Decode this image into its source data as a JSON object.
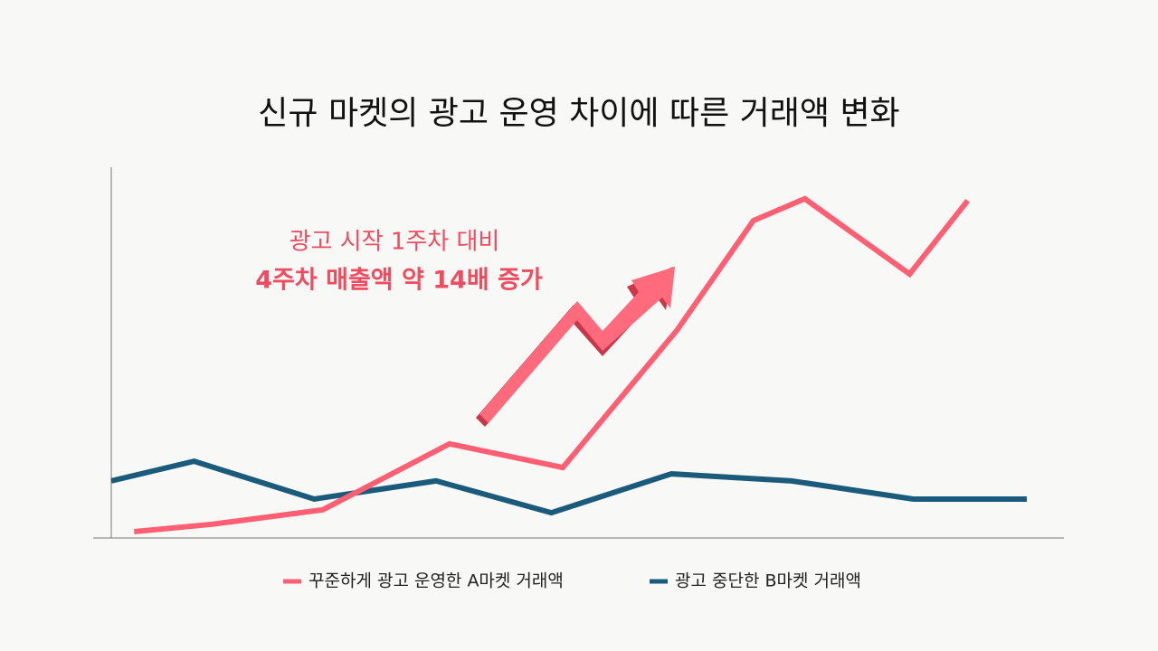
{
  "chart_data": {
    "type": "line",
    "title": "신규 마켓의 광고 운영 차이에 따른 거래액 변화",
    "annotation": [
      "광고 시작 1주차 대비",
      "4주차 매출액 약 14배 증가"
    ],
    "xlim": [
      0,
      100
    ],
    "ylim": [
      0,
      100
    ],
    "grid": false,
    "legend": "bottom",
    "series": [
      {
        "name": "꾸준하게 광고 운영한 A마켓 거래액",
        "color": "#ff5f73",
        "x": [
          2.4,
          10.6,
          22.2,
          35.5,
          47.4,
          59.4,
          67.4,
          72.8,
          83.8,
          89.9
        ],
        "values": [
          1.7,
          3.7,
          7.6,
          25.4,
          19.0,
          56.1,
          85.6,
          91.5,
          71.2,
          91.0
        ]
      },
      {
        "name": "광고 중단한 B마켓 거래액",
        "color": "#1a5a7a",
        "x": [
          0,
          8.7,
          21.3,
          34.1,
          46.2,
          58.8,
          71.4,
          84.2,
          96.1
        ],
        "values": [
          15.4,
          20.7,
          10.5,
          15.4,
          6.8,
          17.3,
          15.4,
          10.5,
          10.5
        ]
      }
    ]
  }
}
